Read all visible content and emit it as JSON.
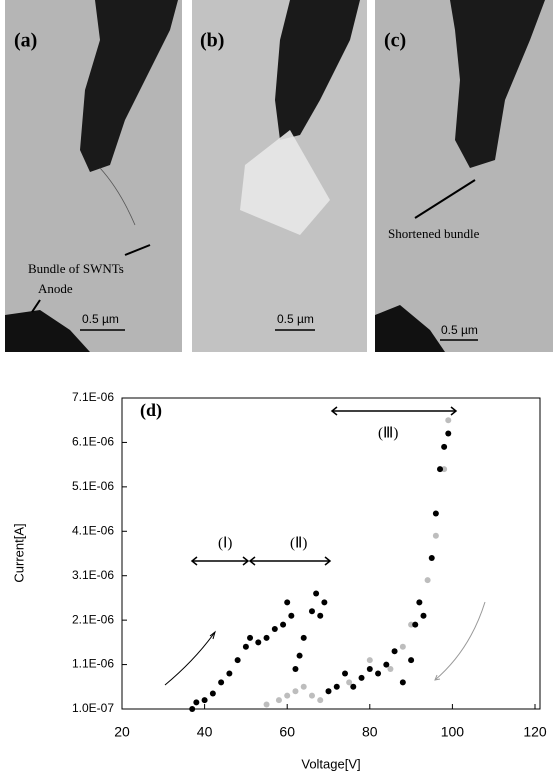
{
  "panels": [
    {
      "label": "(a)",
      "annotations": [
        "Bundle of SWNTs",
        "Anode"
      ],
      "scale_bar": "0.5 µm"
    },
    {
      "label": "(b)",
      "scale_bar": "0.5 µm"
    },
    {
      "label": "(c)",
      "annotations": [
        "Shortened bundle"
      ],
      "scale_bar": "0.5 µm"
    }
  ],
  "chart_data": {
    "type": "scatter",
    "annotations": [
      "(d)",
      "(Ⅰ)",
      "(Ⅱ)",
      "(Ⅲ)"
    ],
    "x_label": "Voltage[V]",
    "y_label": "Current[A]",
    "xlim": [
      20,
      120
    ],
    "xticks": [
      20,
      40,
      60,
      80,
      100,
      120
    ],
    "ylim": [
      1e-07,
      7.1e-06
    ],
    "yticks": [
      {
        "value": 1e-07,
        "label": "1.0E-07"
      },
      {
        "value": 1.1e-06,
        "label": "1.1E-06"
      },
      {
        "value": 2.1e-06,
        "label": "2.1E-06"
      },
      {
        "value": 3.1e-06,
        "label": "3.1E-06"
      },
      {
        "value": 4.1e-06,
        "label": "4.1E-06"
      },
      {
        "value": 5.1e-06,
        "label": "5.1E-06"
      },
      {
        "value": 6.1e-06,
        "label": "6.1E-06"
      },
      {
        "value": 7.1e-06,
        "label": "7.1E-06"
      }
    ],
    "series": [
      {
        "color": "#bdbdbd",
        "x": [
          55,
          58,
          60,
          62,
          64,
          66,
          68,
          70,
          75,
          80,
          85,
          88,
          90,
          92,
          94,
          96,
          98,
          99
        ],
        "values": [
          2e-07,
          3e-07,
          4e-07,
          5e-07,
          6e-07,
          4e-07,
          3e-07,
          5e-07,
          7e-07,
          1.2e-06,
          1e-06,
          1.5e-06,
          2e-06,
          2.5e-06,
          3e-06,
          4e-06,
          5.5e-06,
          6.6e-06
        ]
      },
      {
        "color": "#000000",
        "x": [
          37,
          38,
          40,
          42,
          44,
          46,
          48,
          50,
          51,
          53,
          55,
          57,
          59,
          60,
          61,
          62,
          63,
          64,
          66,
          67,
          68,
          69,
          70,
          72,
          74,
          76,
          78,
          80,
          82,
          84,
          86,
          88,
          90,
          91,
          92,
          93,
          95,
          96,
          97,
          98,
          99
        ],
        "values": [
          1e-07,
          2.5e-07,
          3e-07,
          4.5e-07,
          7e-07,
          9e-07,
          1.2e-06,
          1.5e-06,
          1.7e-06,
          1.6e-06,
          1.7e-06,
          1.9e-06,
          2e-06,
          2.5e-06,
          2.2e-06,
          1e-06,
          1.3e-06,
          1.7e-06,
          2.3e-06,
          2.7e-06,
          2.2e-06,
          2.5e-06,
          5e-07,
          6e-07,
          9e-07,
          6e-07,
          8e-07,
          1e-06,
          9e-07,
          1.1e-06,
          1.4e-06,
          7e-07,
          1.2e-06,
          2e-06,
          2.5e-06,
          2.2e-06,
          3.5e-06,
          4.5e-06,
          5.5e-06,
          6e-06,
          6.3e-06
        ]
      }
    ]
  }
}
